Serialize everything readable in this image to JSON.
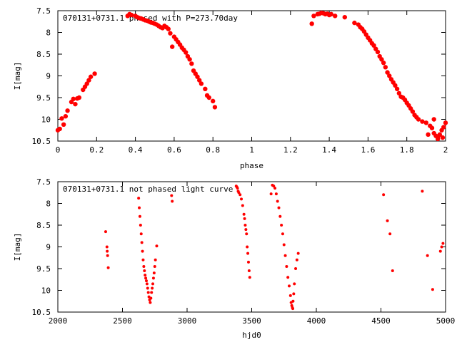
{
  "chart_data": [
    {
      "type": "scatter",
      "title": "070131+0731.1 phased with P=273.70day",
      "xlabel": "phase",
      "ylabel": "I[mag]",
      "xlim": [
        0,
        2
      ],
      "ylim": [
        10.5,
        7.5
      ],
      "y_inverted": true,
      "grid": false,
      "marker": "filled-circle",
      "color": "#ff0000",
      "xticks": [
        0,
        0.2,
        0.4,
        0.6,
        0.8,
        1,
        1.2,
        1.4,
        1.6,
        1.8,
        2
      ],
      "xtick_labels": [
        "0",
        "0.2",
        "0.4",
        "0.6",
        "0.8",
        "1",
        "1.2",
        "1.4",
        "1.6",
        "1.8",
        "2"
      ],
      "yticks": [
        7.5,
        8,
        8.5,
        9,
        9.5,
        10,
        10.5
      ],
      "ytick_labels": [
        "7.5",
        "8",
        "8.5",
        "9",
        "9.5",
        "10",
        "10.5"
      ],
      "points": [
        [
          0.0,
          10.25
        ],
        [
          0.01,
          10.22
        ],
        [
          0.02,
          9.98
        ],
        [
          0.03,
          10.12
        ],
        [
          0.04,
          9.93
        ],
        [
          0.05,
          9.8
        ],
        [
          0.07,
          9.6
        ],
        [
          0.08,
          9.53
        ],
        [
          0.09,
          9.65
        ],
        [
          0.1,
          9.52
        ],
        [
          0.11,
          9.5
        ],
        [
          0.13,
          9.32
        ],
        [
          0.14,
          9.25
        ],
        [
          0.15,
          9.18
        ],
        [
          0.16,
          9.1
        ],
        [
          0.17,
          9.02
        ],
        [
          0.19,
          8.95
        ],
        [
          0.36,
          7.62
        ],
        [
          0.37,
          7.58
        ],
        [
          0.38,
          7.6
        ],
        [
          0.4,
          7.62
        ],
        [
          0.41,
          7.65
        ],
        [
          0.42,
          7.67
        ],
        [
          0.43,
          7.68
        ],
        [
          0.44,
          7.7
        ],
        [
          0.45,
          7.72
        ],
        [
          0.46,
          7.73
        ],
        [
          0.47,
          7.75
        ],
        [
          0.48,
          7.77
        ],
        [
          0.49,
          7.78
        ],
        [
          0.5,
          7.8
        ],
        [
          0.51,
          7.82
        ],
        [
          0.52,
          7.85
        ],
        [
          0.53,
          7.88
        ],
        [
          0.54,
          7.9
        ],
        [
          0.55,
          7.85
        ],
        [
          0.56,
          7.88
        ],
        [
          0.57,
          7.92
        ],
        [
          0.58,
          8.02
        ],
        [
          0.59,
          8.33
        ],
        [
          0.6,
          8.1
        ],
        [
          0.61,
          8.16
        ],
        [
          0.62,
          8.22
        ],
        [
          0.63,
          8.28
        ],
        [
          0.64,
          8.35
        ],
        [
          0.65,
          8.4
        ],
        [
          0.66,
          8.46
        ],
        [
          0.67,
          8.55
        ],
        [
          0.68,
          8.62
        ],
        [
          0.69,
          8.72
        ],
        [
          0.7,
          8.88
        ],
        [
          0.71,
          8.95
        ],
        [
          0.72,
          9.02
        ],
        [
          0.73,
          9.1
        ],
        [
          0.74,
          9.18
        ],
        [
          0.76,
          9.3
        ],
        [
          0.77,
          9.45
        ],
        [
          0.78,
          9.5
        ],
        [
          0.8,
          9.58
        ],
        [
          0.81,
          9.72
        ],
        [
          1.31,
          7.8
        ],
        [
          1.32,
          7.62
        ],
        [
          1.34,
          7.58
        ],
        [
          1.35,
          7.57
        ],
        [
          1.36,
          7.55
        ],
        [
          1.37,
          7.56
        ],
        [
          1.38,
          7.58
        ],
        [
          1.39,
          7.57
        ],
        [
          1.4,
          7.6
        ],
        [
          1.41,
          7.58
        ],
        [
          1.43,
          7.62
        ],
        [
          1.48,
          7.65
        ],
        [
          1.53,
          7.78
        ],
        [
          1.55,
          7.82
        ],
        [
          1.56,
          7.88
        ],
        [
          1.57,
          7.92
        ],
        [
          1.58,
          7.98
        ],
        [
          1.59,
          8.05
        ],
        [
          1.6,
          8.12
        ],
        [
          1.61,
          8.18
        ],
        [
          1.62,
          8.25
        ],
        [
          1.63,
          8.3
        ],
        [
          1.64,
          8.38
        ],
        [
          1.65,
          8.45
        ],
        [
          1.66,
          8.55
        ],
        [
          1.67,
          8.62
        ],
        [
          1.68,
          8.7
        ],
        [
          1.69,
          8.8
        ],
        [
          1.7,
          8.92
        ],
        [
          1.71,
          9.0
        ],
        [
          1.72,
          9.08
        ],
        [
          1.73,
          9.15
        ],
        [
          1.74,
          9.22
        ],
        [
          1.75,
          9.3
        ],
        [
          1.76,
          9.4
        ],
        [
          1.77,
          9.48
        ],
        [
          1.78,
          9.5
        ],
        [
          1.79,
          9.55
        ],
        [
          1.8,
          9.62
        ],
        [
          1.81,
          9.68
        ],
        [
          1.82,
          9.75
        ],
        [
          1.83,
          9.82
        ],
        [
          1.84,
          9.9
        ],
        [
          1.85,
          9.95
        ],
        [
          1.86,
          10.0
        ],
        [
          1.88,
          10.05
        ],
        [
          1.9,
          10.08
        ],
        [
          1.92,
          10.15
        ],
        [
          1.93,
          10.2
        ],
        [
          1.94,
          10.32
        ],
        [
          1.95,
          10.38
        ],
        [
          1.96,
          10.4
        ],
        [
          1.97,
          10.35
        ],
        [
          1.98,
          10.25
        ],
        [
          1.99,
          10.18
        ],
        [
          2.0,
          10.08
        ],
        [
          1.91,
          10.35
        ],
        [
          1.94,
          10.0
        ],
        [
          1.96,
          10.45
        ],
        [
          1.985,
          10.42
        ]
      ]
    },
    {
      "type": "scatter",
      "title": "070131+0731.1 not phased light curve",
      "xlabel": "hjd0",
      "ylabel": "I[mag]",
      "xlim": [
        2000,
        5000
      ],
      "ylim": [
        10.5,
        7.5
      ],
      "y_inverted": true,
      "grid": false,
      "marker": "filled-circle",
      "color": "#ff0000",
      "xticks": [
        2000,
        2500,
        3000,
        3500,
        4000,
        4500,
        5000
      ],
      "xtick_labels": [
        "2000",
        "2500",
        "3000",
        "3500",
        "4000",
        "4500",
        "5000"
      ],
      "yticks": [
        7.5,
        8,
        8.5,
        9,
        9.5,
        10,
        10.5
      ],
      "ytick_labels": [
        "7.5",
        "8",
        "8.5",
        "9",
        "9.5",
        "10",
        "10.5"
      ],
      "points": [
        [
          2370,
          8.65
        ],
        [
          2380,
          9.0
        ],
        [
          2382,
          9.1
        ],
        [
          2385,
          9.2
        ],
        [
          2390,
          9.48
        ],
        [
          2625,
          7.88
        ],
        [
          2630,
          8.1
        ],
        [
          2635,
          8.3
        ],
        [
          2640,
          8.5
        ],
        [
          2645,
          8.7
        ],
        [
          2650,
          8.9
        ],
        [
          2655,
          9.1
        ],
        [
          2660,
          9.3
        ],
        [
          2665,
          9.45
        ],
        [
          2670,
          9.55
        ],
        [
          2675,
          9.65
        ],
        [
          2680,
          9.72
        ],
        [
          2685,
          9.78
        ],
        [
          2690,
          9.85
        ],
        [
          2695,
          9.95
        ],
        [
          2700,
          10.05
        ],
        [
          2705,
          10.15
        ],
        [
          2710,
          10.22
        ],
        [
          2715,
          10.28
        ],
        [
          2720,
          10.18
        ],
        [
          2725,
          10.05
        ],
        [
          2730,
          9.95
        ],
        [
          2735,
          9.85
        ],
        [
          2740,
          9.72
        ],
        [
          2745,
          9.6
        ],
        [
          2750,
          9.45
        ],
        [
          2755,
          9.3
        ],
        [
          2765,
          8.98
        ],
        [
          2880,
          7.82
        ],
        [
          2885,
          7.95
        ],
        [
          3380,
          7.6
        ],
        [
          3385,
          7.62
        ],
        [
          3390,
          7.65
        ],
        [
          3395,
          7.72
        ],
        [
          3400,
          7.75
        ],
        [
          3410,
          7.8
        ],
        [
          3420,
          7.9
        ],
        [
          3430,
          8.05
        ],
        [
          3440,
          8.25
        ],
        [
          3445,
          8.35
        ],
        [
          3450,
          8.5
        ],
        [
          3455,
          8.6
        ],
        [
          3460,
          8.7
        ],
        [
          3465,
          9.0
        ],
        [
          3470,
          9.15
        ],
        [
          3475,
          9.35
        ],
        [
          3480,
          9.55
        ],
        [
          3485,
          9.7
        ],
        [
          3650,
          7.78
        ],
        [
          3660,
          7.58
        ],
        [
          3670,
          7.6
        ],
        [
          3680,
          7.65
        ],
        [
          3690,
          7.78
        ],
        [
          3700,
          7.95
        ],
        [
          3710,
          8.1
        ],
        [
          3720,
          8.3
        ],
        [
          3730,
          8.5
        ],
        [
          3740,
          8.7
        ],
        [
          3750,
          8.95
        ],
        [
          3760,
          9.2
        ],
        [
          3770,
          9.45
        ],
        [
          3780,
          9.7
        ],
        [
          3790,
          9.9
        ],
        [
          3800,
          10.12
        ],
        [
          3805,
          10.28
        ],
        [
          3810,
          10.35
        ],
        [
          3815,
          10.4
        ],
        [
          3818,
          10.42
        ],
        [
          3820,
          10.25
        ],
        [
          3825,
          10.08
        ],
        [
          3830,
          9.85
        ],
        [
          3840,
          9.5
        ],
        [
          3850,
          9.3
        ],
        [
          3860,
          9.15
        ],
        [
          4520,
          7.8
        ],
        [
          4550,
          8.4
        ],
        [
          4570,
          8.7
        ],
        [
          4590,
          9.55
        ],
        [
          4820,
          7.72
        ],
        [
          4860,
          9.2
        ],
        [
          4900,
          9.98
        ],
        [
          4960,
          9.1
        ],
        [
          4970,
          9.0
        ],
        [
          4980,
          8.92
        ]
      ]
    }
  ]
}
